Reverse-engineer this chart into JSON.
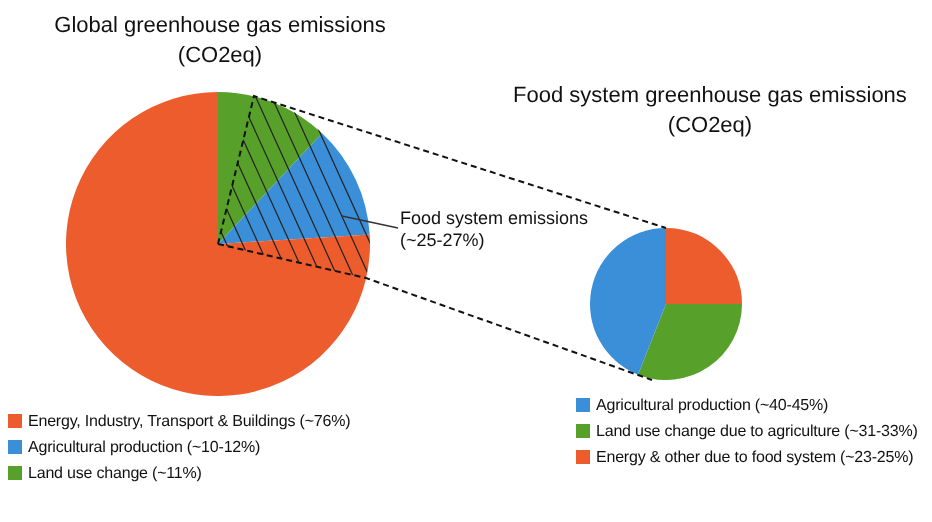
{
  "chart_data": [
    {
      "type": "pie",
      "title": "Global greenhouse gas emissions\n(CO2eq)",
      "categories": [
        "Energy, Industry, Transport & Buildings (~76%)",
        "Agricultural production (~10-12%)",
        "Land use change (~11%)"
      ],
      "values": [
        76,
        12,
        12
      ],
      "colors": [
        "#ec5c2c",
        "#3b8fd8",
        "#57a12a"
      ],
      "legend": "bottom",
      "annotations": [
        "Food system emissions\n(~25-27%)"
      ]
    },
    {
      "type": "pie",
      "title": "Food system greenhouse gas emissions\n(CO2eq)",
      "categories": [
        "Agricultural production (~40-45%)",
        "Land use change due to agriculture (~31-33%)",
        "Energy & other due to food system (~23-25%)"
      ],
      "values": [
        44,
        31,
        25
      ],
      "colors": [
        "#3b8fd8",
        "#57a12a",
        "#ec5c2c"
      ],
      "legend": "bottom"
    }
  ]
}
